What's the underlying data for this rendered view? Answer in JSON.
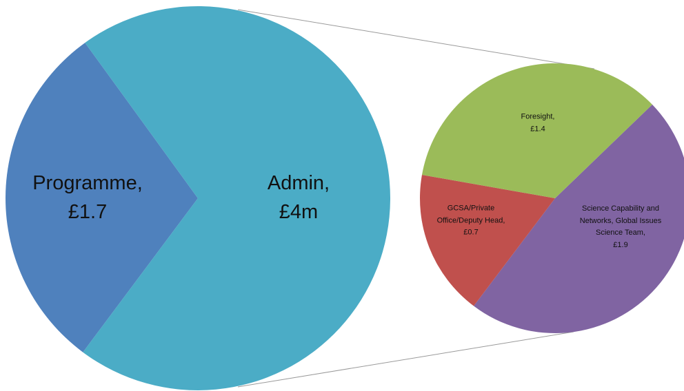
{
  "chart_data": [
    {
      "type": "pie",
      "categories": [
        "Programme,",
        "Admin,"
      ],
      "values": [
        1.7,
        4
      ],
      "value_labels": [
        "£1.7",
        "£4m"
      ],
      "colors": [
        "#4f81bd",
        "#4bacc6"
      ]
    },
    {
      "type": "pie",
      "categories": [
        "Science Capability and Networks, Global Issues Science Team,",
        "GCSA/Private Office/Deputy Head,",
        "Foresight,"
      ],
      "values": [
        1.9,
        0.7,
        1.4
      ],
      "value_labels": [
        "£1.9",
        "£0.7",
        "£1.4"
      ],
      "colors": [
        "#8064a2",
        "#c0504d",
        "#9bbb59"
      ]
    }
  ]
}
